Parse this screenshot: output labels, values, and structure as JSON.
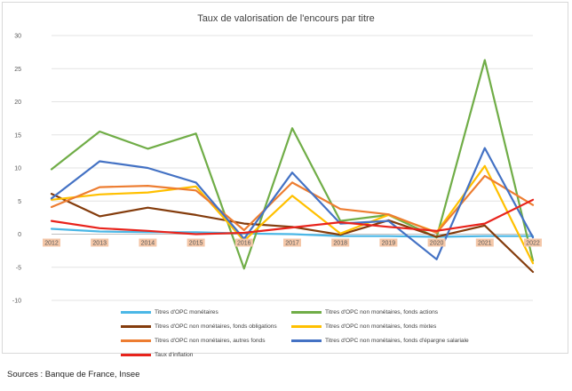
{
  "source_note": "Sources : Banque de France, Insee",
  "chart_data": {
    "type": "line",
    "title": "Taux de valorisation de l'encours par titre",
    "xlabel": "",
    "ylabel": "",
    "categories": [
      "2012",
      "2013",
      "2014",
      "2015",
      "2016",
      "2017",
      "2018",
      "2019",
      "2020",
      "2021",
      "2022"
    ],
    "ylim": [
      -10,
      30
    ],
    "yticks": [
      -10,
      -5,
      0,
      5,
      10,
      15,
      20,
      25,
      30
    ],
    "ytick_labels": [
      "-10",
      "-5",
      "0",
      "5",
      "10",
      "15",
      "20",
      "25",
      "30"
    ],
    "grid": true,
    "legend_position": "bottom",
    "series": [
      {
        "name": "Titres d'OPC monétaires",
        "color": "#4bb7e6",
        "values": [
          0.8,
          0.4,
          0.3,
          0.3,
          0.1,
          0.0,
          -0.3,
          -0.3,
          -0.4,
          -0.3,
          -0.3
        ]
      },
      {
        "name": "Titres d'OPC non monétaires, fonds actions",
        "color": "#70ad47",
        "values": [
          9.8,
          15.5,
          12.9,
          15.2,
          -5.2,
          16.0,
          2.0,
          2.9,
          -0.5,
          26.3,
          -4.0
        ]
      },
      {
        "name": "Titres d'OPC non monétaires, fonds obligations",
        "color": "#843c0c",
        "values": [
          6.1,
          2.7,
          4.0,
          2.9,
          1.6,
          1.1,
          -0.1,
          2.1,
          -0.4,
          1.3,
          -5.7
        ]
      },
      {
        "name": "Titres d'OPC non monétaires, fonds mixtes",
        "color": "#ffc000",
        "values": [
          5.2,
          6.0,
          6.3,
          7.2,
          -1.0,
          5.8,
          0.1,
          2.9,
          0.3,
          10.3,
          -4.4
        ]
      },
      {
        "name": "Titres d'OPC non monétaires, autres fonds",
        "color": "#ed7d31",
        "values": [
          4.1,
          7.1,
          7.3,
          6.6,
          0.6,
          7.8,
          3.8,
          3.0,
          0.2,
          8.8,
          4.4
        ]
      },
      {
        "name": "Titres d'OPC non monétaires, fonds d'épargne salariale",
        "color": "#4472c4",
        "values": [
          5.4,
          11.0,
          10.0,
          7.8,
          -0.7,
          9.3,
          1.6,
          2.0,
          -3.8,
          13.0,
          -0.5
        ]
      },
      {
        "name": "Taux d'inflation",
        "color": "#e8231c",
        "values": [
          2.0,
          0.9,
          0.5,
          0.0,
          0.2,
          1.0,
          1.8,
          1.1,
          0.5,
          1.6,
          5.2
        ]
      }
    ]
  }
}
